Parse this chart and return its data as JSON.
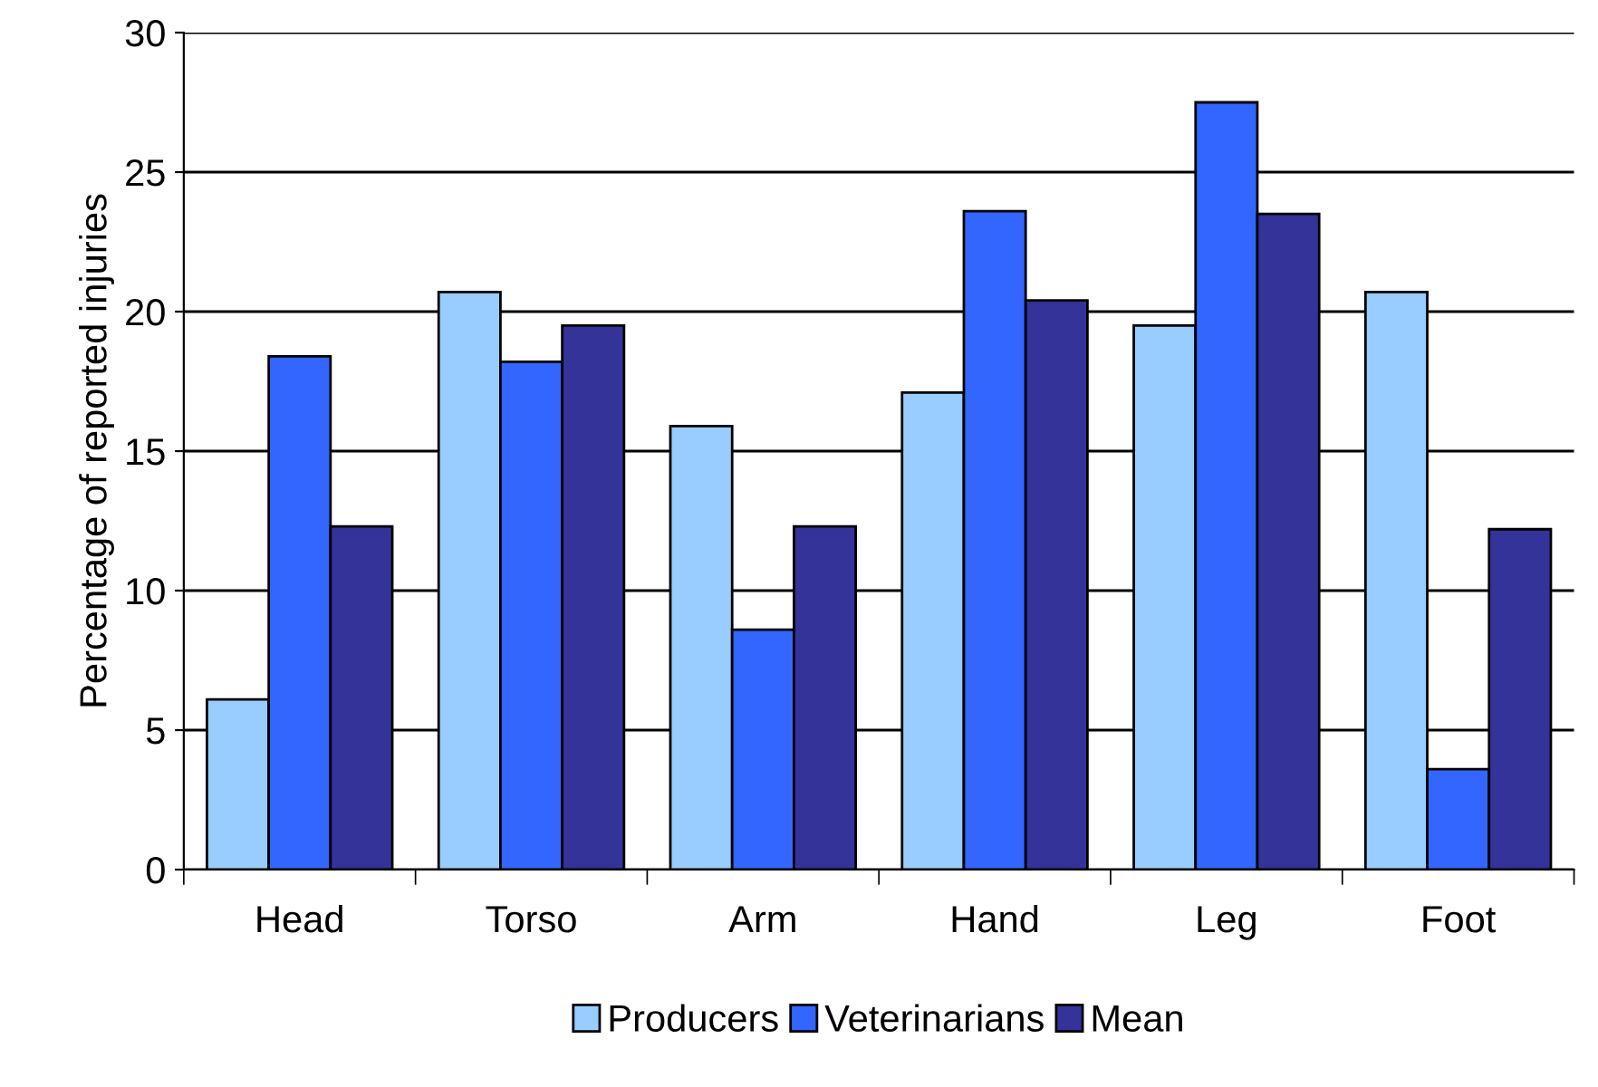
{
  "chart_data": {
    "type": "bar",
    "ylabel": "Percentage of reported injuries",
    "categories": [
      "Head",
      "Torso",
      "Arm",
      "Hand",
      "Leg",
      "Foot"
    ],
    "series": [
      {
        "name": "Producers",
        "color": "#99ccff",
        "values": [
          6.1,
          20.7,
          15.9,
          17.1,
          19.5,
          20.7
        ]
      },
      {
        "name": "Veterinarians",
        "color": "#3366ff",
        "values": [
          18.4,
          18.2,
          8.6,
          23.6,
          27.5,
          3.6
        ]
      },
      {
        "name": "Mean",
        "color": "#333399",
        "values": [
          12.3,
          19.5,
          12.3,
          20.4,
          23.5,
          12.2
        ]
      }
    ],
    "ylim": [
      0,
      30
    ],
    "yticks": [
      0,
      5,
      10,
      15,
      20,
      25,
      30
    ],
    "grid": "y",
    "legend": "bottom"
  }
}
